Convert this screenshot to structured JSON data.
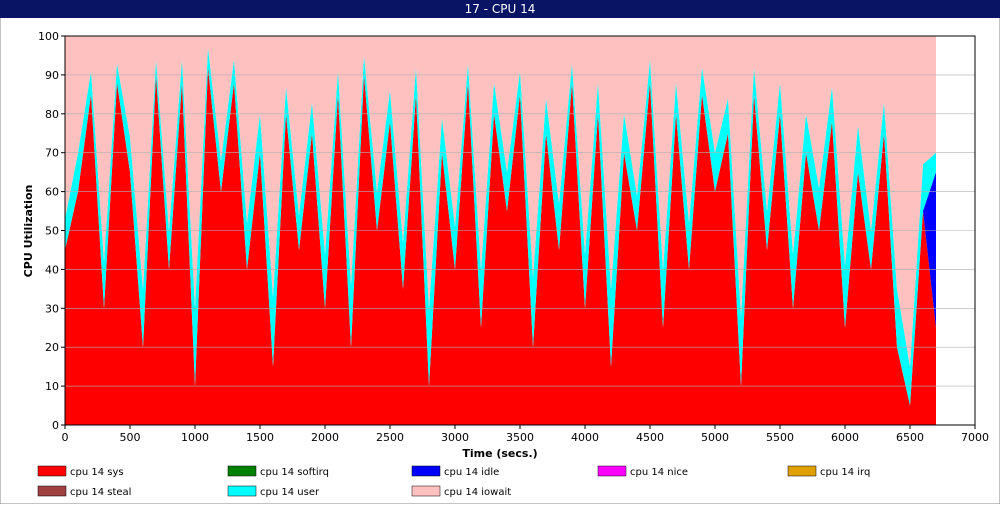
{
  "chart_data": {
    "type": "stacked_area",
    "title": "17 - CPU 14",
    "xlabel": "Time (secs.)",
    "ylabel": "CPU Utilization",
    "x": [
      0,
      100,
      200,
      300,
      400,
      500,
      600,
      700,
      800,
      900,
      1000,
      1100,
      1200,
      1300,
      1400,
      1500,
      1600,
      1700,
      1800,
      1900,
      2000,
      2100,
      2200,
      2300,
      2400,
      2500,
      2600,
      2700,
      2800,
      2900,
      3000,
      3100,
      3200,
      3300,
      3400,
      3500,
      3600,
      3700,
      3800,
      3900,
      4000,
      4100,
      4200,
      4300,
      4400,
      4500,
      4600,
      4700,
      4800,
      4900,
      5000,
      5100,
      5200,
      5300,
      5400,
      5500,
      5600,
      5700,
      5800,
      5900,
      6000,
      6100,
      6200,
      6300,
      6400,
      6500,
      6600,
      6700
    ],
    "series": [
      {
        "name": "cpu 14 sys",
        "color": "#ff0000",
        "values": [
          45,
          60,
          85,
          30,
          88,
          65,
          20,
          90,
          40,
          88,
          10,
          92,
          60,
          88,
          40,
          70,
          15,
          80,
          45,
          75,
          30,
          85,
          20,
          90,
          50,
          78,
          35,
          85,
          10,
          70,
          40,
          88,
          25,
          80,
          55,
          85,
          20,
          75,
          45,
          88,
          30,
          80,
          15,
          70,
          50,
          88,
          25,
          80,
          40,
          85,
          60,
          75,
          10,
          85,
          45,
          80,
          30,
          70,
          50,
          78,
          25,
          65,
          40,
          75,
          20,
          5,
          55,
          25
        ]
      },
      {
        "name": "cpu 14 softirq",
        "color": "#008000",
        "values": [
          0,
          0,
          0,
          0,
          0,
          0,
          0,
          0,
          0,
          0,
          0,
          0,
          0,
          0,
          0,
          0,
          0,
          0,
          0,
          0,
          0,
          0,
          0,
          0,
          0,
          0,
          0,
          0,
          0,
          0,
          0,
          0,
          0,
          0,
          0,
          0,
          0,
          0,
          0,
          0,
          0,
          0,
          0,
          0,
          0,
          0,
          0,
          0,
          0,
          0,
          0,
          0,
          0,
          0,
          0,
          0,
          0,
          0,
          0,
          0,
          0,
          0,
          0,
          0,
          0,
          0,
          0,
          0
        ]
      },
      {
        "name": "cpu 14 idle",
        "color": "#0000ff",
        "values": [
          0,
          0,
          0,
          0,
          0,
          0,
          0,
          0,
          0,
          0,
          0,
          0,
          0,
          0,
          0,
          0,
          0,
          0,
          0,
          0,
          0,
          0,
          0,
          0,
          0,
          0,
          0,
          0,
          0,
          0,
          0,
          0,
          0,
          0,
          0,
          0,
          0,
          0,
          0,
          0,
          0,
          0,
          0,
          0,
          0,
          0,
          0,
          0,
          0,
          0,
          0,
          0,
          0,
          0,
          0,
          0,
          0,
          0,
          0,
          0,
          0,
          0,
          0,
          0,
          0,
          0,
          0,
          40
        ]
      },
      {
        "name": "cpu 14 nice",
        "color": "#ff00ff",
        "values": [
          0,
          0,
          0,
          0,
          0,
          0,
          0,
          0,
          0,
          0,
          0,
          0,
          0,
          0,
          0,
          0,
          0,
          0,
          0,
          0,
          0,
          0,
          0,
          0,
          0,
          0,
          0,
          0,
          0,
          0,
          0,
          0,
          0,
          0,
          0,
          0,
          0,
          0,
          0,
          0,
          0,
          0,
          0,
          0,
          0,
          0,
          0,
          0,
          0,
          0,
          0,
          0,
          0,
          0,
          0,
          0,
          0,
          0,
          0,
          0,
          0,
          0,
          0,
          0,
          0,
          0,
          0,
          0
        ]
      },
      {
        "name": "cpu 14 irq",
        "color": "#e0a000",
        "values": [
          0,
          0,
          0,
          0,
          0,
          0,
          0,
          0,
          0,
          0,
          0,
          0,
          0,
          0,
          0,
          0,
          0,
          0,
          0,
          0,
          0,
          0,
          0,
          0,
          0,
          0,
          0,
          0,
          0,
          0,
          0,
          0,
          0,
          0,
          0,
          0,
          0,
          0,
          0,
          0,
          0,
          0,
          0,
          0,
          0,
          0,
          0,
          0,
          0,
          0,
          0,
          0,
          0,
          0,
          0,
          0,
          0,
          0,
          0,
          0,
          0,
          0,
          0,
          0,
          0,
          0,
          0,
          0
        ]
      },
      {
        "name": "cpu 14 steal",
        "color": "#a04040",
        "values": [
          0,
          0,
          0,
          0,
          0,
          0,
          0,
          0,
          0,
          0,
          0,
          0,
          0,
          0,
          0,
          0,
          0,
          0,
          0,
          0,
          0,
          0,
          0,
          0,
          0,
          0,
          0,
          0,
          0,
          0,
          0,
          0,
          0,
          0,
          0,
          0,
          0,
          0,
          0,
          0,
          0,
          0,
          0,
          0,
          0,
          0,
          0,
          0,
          0,
          0,
          0,
          0,
          0,
          0,
          0,
          0,
          0,
          0,
          0,
          0,
          0,
          0,
          0,
          0,
          0,
          0,
          0,
          0
        ]
      },
      {
        "name": "cpu 14 user",
        "color": "#00ffff",
        "values": [
          8,
          10,
          6,
          12,
          5,
          9,
          15,
          4,
          10,
          6,
          20,
          5,
          8,
          6,
          12,
          10,
          18,
          7,
          9,
          8,
          14,
          6,
          16,
          5,
          10,
          8,
          12,
          7,
          20,
          9,
          11,
          5,
          15,
          8,
          10,
          6,
          18,
          9,
          12,
          5,
          14,
          8,
          20,
          10,
          9,
          6,
          15,
          8,
          12,
          7,
          10,
          9,
          18,
          7,
          10,
          8,
          14,
          10,
          11,
          9,
          16,
          12,
          10,
          8,
          15,
          10,
          12,
          5
        ]
      },
      {
        "name": "cpu 14 iowait",
        "color": "#ffc0c0",
        "values": [
          47,
          30,
          9,
          58,
          7,
          26,
          65,
          6,
          50,
          6,
          70,
          3,
          32,
          6,
          48,
          20,
          67,
          13,
          46,
          17,
          56,
          9,
          64,
          5,
          40,
          14,
          53,
          8,
          70,
          21,
          49,
          7,
          60,
          12,
          35,
          9,
          62,
          16,
          43,
          7,
          56,
          12,
          65,
          20,
          41,
          6,
          60,
          12,
          48,
          8,
          30,
          16,
          72,
          8,
          45,
          12,
          56,
          20,
          39,
          13,
          59,
          23,
          50,
          17,
          65,
          85,
          33,
          30
        ]
      }
    ],
    "xlim": [
      0,
      7000
    ],
    "ylim": [
      0,
      100
    ],
    "xticks": [
      0,
      500,
      1000,
      1500,
      2000,
      2500,
      3000,
      3500,
      4000,
      4500,
      5000,
      5500,
      6000,
      6500,
      7000
    ],
    "yticks": [
      0,
      10,
      20,
      30,
      40,
      50,
      60,
      70,
      80,
      90,
      100
    ],
    "grid": true,
    "legend": "bottom"
  }
}
